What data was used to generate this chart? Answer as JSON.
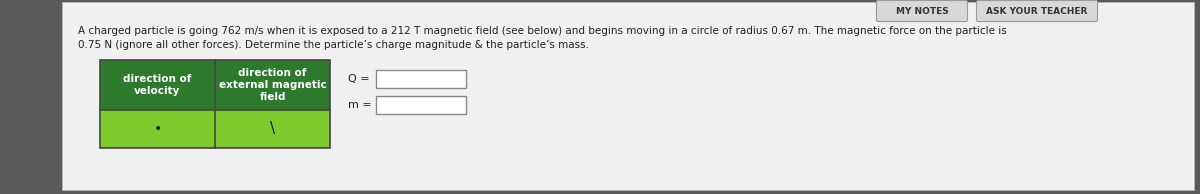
{
  "background_color": "#5a5a5a",
  "panel_bg": "#f0f0f0",
  "title_text1": "A charged particle is going 762 m/s when it is exposed to a 212 T magnetic field (see below) and begins moving in a circle of radius 0.67 m. The magnetic force on the particle is",
  "title_text2": "0.75 N (ignore all other forces). Determine the particle’s charge magnitude & the particle’s mass.",
  "table_header_bg": "#2d7a2d",
  "table_cell_bg": "#7ecb2e",
  "table_header_text_color": "#ffffff",
  "col1_header": "direction of\nvelocity",
  "col2_header": "direction of\nexternal magnetic\nfield",
  "col1_symbol": "•",
  "col2_symbol": "\\",
  "label_q": "Q =",
  "label_m": "m =",
  "btn1_text": "MY NOTES",
  "btn2_text": "ASK YOUR TEACHER",
  "btn_bg": "#d8d8d8",
  "btn_border": "#999999",
  "font_size_body": 7.5,
  "font_size_table": 7.5,
  "font_size_btn": 6.5,
  "font_size_label": 8
}
